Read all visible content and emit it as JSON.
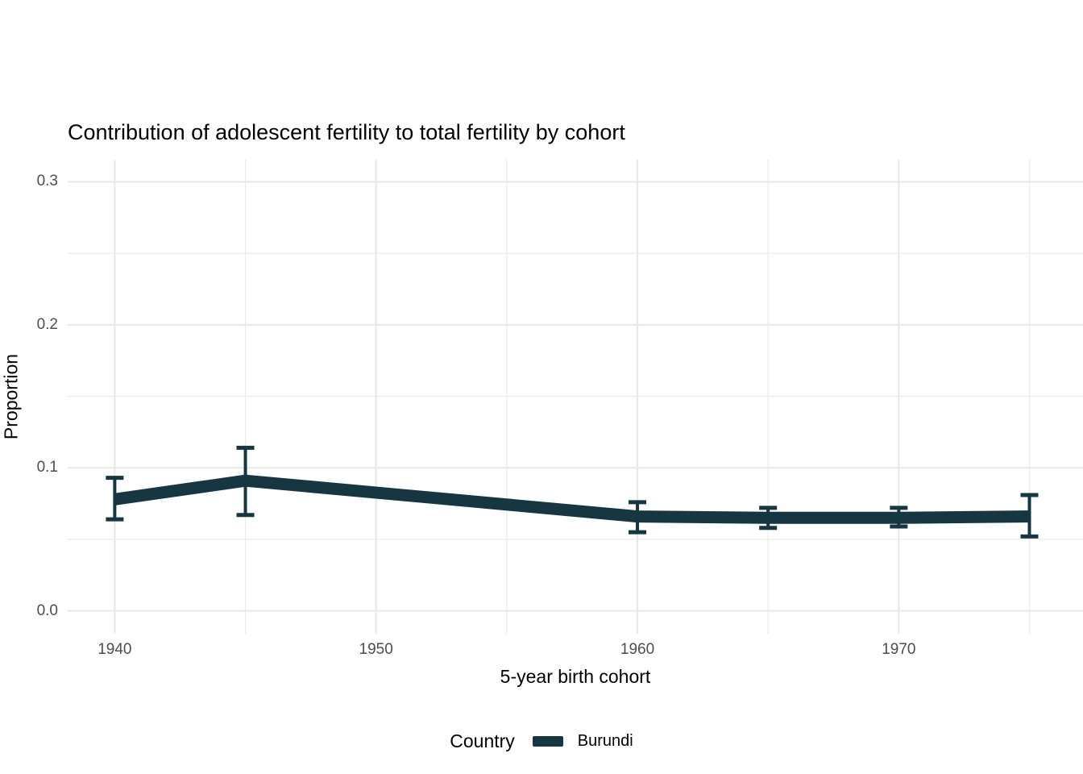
{
  "title": "Contribution of adolescent fertility to total fertility by cohort",
  "axes": {
    "y_label": "Proportion",
    "x_label": "5-year birth cohort",
    "y_tick_labels": [
      "0.0",
      "0.1",
      "0.2",
      "0.3"
    ],
    "x_tick_labels": [
      "1940",
      "1950",
      "1960",
      "1970"
    ]
  },
  "legend": {
    "title": "Country",
    "entries": [
      {
        "label": "Burundi",
        "color": "#163642"
      }
    ]
  },
  "colors": {
    "grid_major": "#e7e7e7",
    "grid_minor": "#ececec",
    "tick_text": "#4d4d4d",
    "series": "#163642"
  },
  "chart_data": {
    "type": "line",
    "title": "Contribution of adolescent fertility to total fertility by cohort",
    "xlabel": "5-year birth cohort",
    "ylabel": "Proportion",
    "xlim": [
      1938.2,
      1977.05
    ],
    "ylim": [
      -0.016,
      0.3155
    ],
    "x_major_ticks": [
      1940,
      1950,
      1960,
      1970
    ],
    "x_minor_ticks": [
      1945,
      1955,
      1965,
      1975
    ],
    "y_major_ticks": [
      0.0,
      0.1,
      0.2,
      0.3
    ],
    "y_minor_ticks": [
      0.05,
      0.15,
      0.25
    ],
    "grid": true,
    "legend_position": "bottom",
    "series": [
      {
        "name": "Burundi",
        "color": "#163642",
        "x": [
          1940,
          1945,
          1960,
          1965,
          1970,
          1975
        ],
        "y": [
          0.078,
          0.091,
          0.066,
          0.065,
          0.065,
          0.066
        ],
        "ci_lower": [
          0.064,
          0.067,
          0.055,
          0.058,
          0.059,
          0.052
        ],
        "ci_upper": [
          0.093,
          0.114,
          0.076,
          0.072,
          0.072,
          0.081
        ]
      }
    ]
  }
}
